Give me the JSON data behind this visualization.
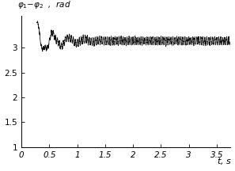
{
  "ylabel": "$\\varphi_1-\\varphi_2$  ,  $rad$",
  "xlabel": "$t$,  $s$",
  "xlim": [
    0,
    3.75
  ],
  "ylim": [
    1,
    3.65
  ],
  "yticks": [
    1,
    1.5,
    2,
    2.5,
    3
  ],
  "ytick_labels": [
    "1",
    "1.5",
    "2",
    "2.5",
    "3"
  ],
  "xticks": [
    0,
    0.5,
    1,
    1.5,
    2,
    2.5,
    3,
    3.5
  ],
  "xtick_labels": [
    "0",
    "0.5",
    "1",
    "1.5",
    "2",
    "2.5",
    "3",
    "3.5"
  ],
  "line_color": "#111111",
  "line_width": 0.55,
  "steady_value": 3.1416,
  "t_start": 0.28,
  "t_end": 3.74,
  "dt": 0.001,
  "seed": 7
}
